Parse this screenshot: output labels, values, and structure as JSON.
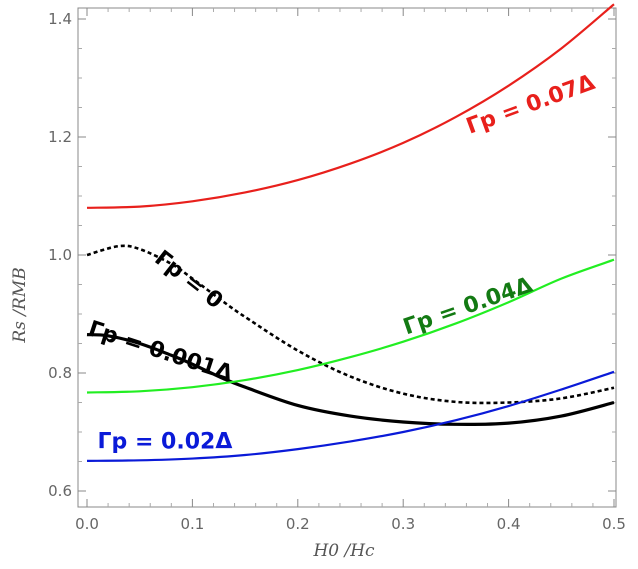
{
  "chart_data": {
    "type": "line",
    "title": "",
    "xlabel": "H0 /Hc",
    "ylabel": "Rs /RMB",
    "xlim": [
      0.0,
      0.5
    ],
    "ylim": [
      0.6,
      1.42
    ],
    "x_ticks": [
      0.0,
      0.1,
      0.2,
      0.3,
      0.4,
      0.5
    ],
    "x_tick_labels": [
      "0.0",
      "0.1",
      "0.2",
      "0.3",
      "0.4",
      "0.5"
    ],
    "y_ticks": [
      0.6,
      0.8,
      1.0,
      1.2,
      1.4
    ],
    "y_tick_labels": [
      "0.6",
      "0.8",
      "1.0",
      "1.2",
      "1.4"
    ],
    "grid": false,
    "legend": "inline labels",
    "series": [
      {
        "name": "Γp = 0.07Δ",
        "color": "#e8201c",
        "style": "solid",
        "x": [
          0,
          0.05,
          0.1,
          0.15,
          0.2,
          0.25,
          0.3,
          0.35,
          0.4,
          0.45,
          0.5
        ],
        "y": [
          1.08,
          1.082,
          1.091,
          1.106,
          1.127,
          1.155,
          1.19,
          1.234,
          1.287,
          1.35,
          1.425
        ]
      },
      {
        "name": "Γp = 0",
        "color": "#000000",
        "style": "dotted",
        "x": [
          0,
          0.03,
          0.05,
          0.08,
          0.1,
          0.13,
          0.15,
          0.2,
          0.25,
          0.3,
          0.35,
          0.4,
          0.45,
          0.5
        ],
        "y": [
          1.0,
          1.015,
          1.01,
          0.985,
          0.96,
          0.92,
          0.895,
          0.838,
          0.794,
          0.765,
          0.751,
          0.75,
          0.757,
          0.775
        ]
      },
      {
        "name": "Γp = 0.001Δ",
        "color": "#000000",
        "style": "solid",
        "x": [
          0,
          0.02,
          0.05,
          0.08,
          0.1,
          0.13,
          0.15,
          0.2,
          0.25,
          0.3,
          0.35,
          0.4,
          0.45,
          0.5
        ],
        "y": [
          0.865,
          0.863,
          0.85,
          0.83,
          0.815,
          0.79,
          0.776,
          0.745,
          0.727,
          0.717,
          0.713,
          0.715,
          0.727,
          0.75
        ]
      },
      {
        "name": "Γp = 0.04Δ",
        "color": "#22ee22",
        "style": "solid",
        "x": [
          0,
          0.05,
          0.1,
          0.15,
          0.2,
          0.25,
          0.3,
          0.35,
          0.4,
          0.45,
          0.5
        ],
        "y": [
          0.767,
          0.769,
          0.776,
          0.788,
          0.805,
          0.827,
          0.853,
          0.884,
          0.92,
          0.96,
          0.992
        ]
      },
      {
        "name": "Γp = 0.02Δ",
        "color": "#0a1ad8",
        "style": "solid",
        "x": [
          0,
          0.05,
          0.1,
          0.15,
          0.2,
          0.25,
          0.3,
          0.35,
          0.4,
          0.45,
          0.5
        ],
        "y": [
          0.651,
          0.652,
          0.655,
          0.661,
          0.671,
          0.684,
          0.7,
          0.72,
          0.744,
          0.772,
          0.802
        ]
      }
    ],
    "annotations": [
      {
        "text": "Γp = 0.07Δ",
        "color": "#e8201c",
        "x": 0.363,
        "y": 1.205,
        "rotate": -20
      },
      {
        "text": "Γp = 0",
        "color": "#000000",
        "x": 0.063,
        "y": 0.99,
        "rotate": 38
      },
      {
        "text": "Γp = 0.001Δ",
        "color": "#000000",
        "x": 0.0,
        "y": 0.865,
        "rotate": 18
      },
      {
        "text": "Γp = 0.04Δ",
        "color": "#137a13",
        "x": 0.303,
        "y": 0.865,
        "rotate": -19
      },
      {
        "text": "Γp = 0.02Δ",
        "color": "#0a1ad8",
        "x": 0.01,
        "y": 0.672,
        "rotate": 0
      }
    ]
  }
}
